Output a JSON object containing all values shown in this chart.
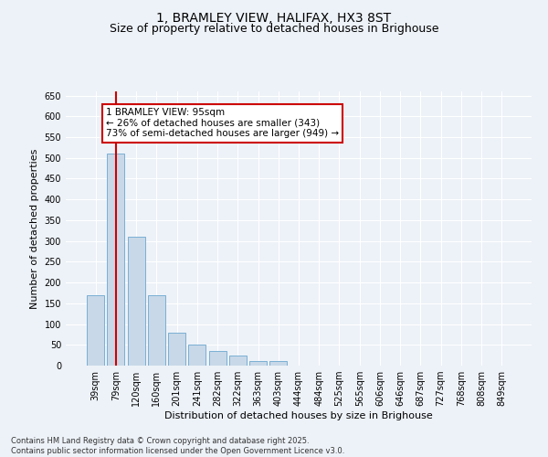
{
  "title": "1, BRAMLEY VIEW, HALIFAX, HX3 8ST",
  "subtitle": "Size of property relative to detached houses in Brighouse",
  "xlabel": "Distribution of detached houses by size in Brighouse",
  "ylabel": "Number of detached properties",
  "categories": [
    "39sqm",
    "79sqm",
    "120sqm",
    "160sqm",
    "201sqm",
    "241sqm",
    "282sqm",
    "322sqm",
    "363sqm",
    "403sqm",
    "444sqm",
    "484sqm",
    "525sqm",
    "565sqm",
    "606sqm",
    "646sqm",
    "687sqm",
    "727sqm",
    "768sqm",
    "808sqm",
    "849sqm"
  ],
  "values": [
    170,
    510,
    310,
    170,
    80,
    50,
    35,
    25,
    10,
    10,
    1,
    0,
    0,
    0,
    0,
    0,
    0,
    0,
    0,
    1,
    0
  ],
  "bar_color": "#c8d8e8",
  "bar_edge_color": "#7bafd4",
  "vline_x": 1.0,
  "vline_color": "#cc0000",
  "annotation_line1": "1 BRAMLEY VIEW: 95sqm",
  "annotation_line2": "← 26% of detached houses are smaller (343)",
  "annotation_line3": "73% of semi-detached houses are larger (949) →",
  "ylim": [
    0,
    660
  ],
  "yticks": [
    0,
    50,
    100,
    150,
    200,
    250,
    300,
    350,
    400,
    450,
    500,
    550,
    600,
    650
  ],
  "footer_text": "Contains HM Land Registry data © Crown copyright and database right 2025.\nContains public sector information licensed under the Open Government Licence v3.0.",
  "background_color": "#edf2f8",
  "plot_bg_color": "#edf2f8",
  "title_fontsize": 10,
  "subtitle_fontsize": 9,
  "tick_fontsize": 7,
  "ylabel_fontsize": 8,
  "xlabel_fontsize": 8,
  "annotation_fontsize": 7.5,
  "footer_fontsize": 6
}
